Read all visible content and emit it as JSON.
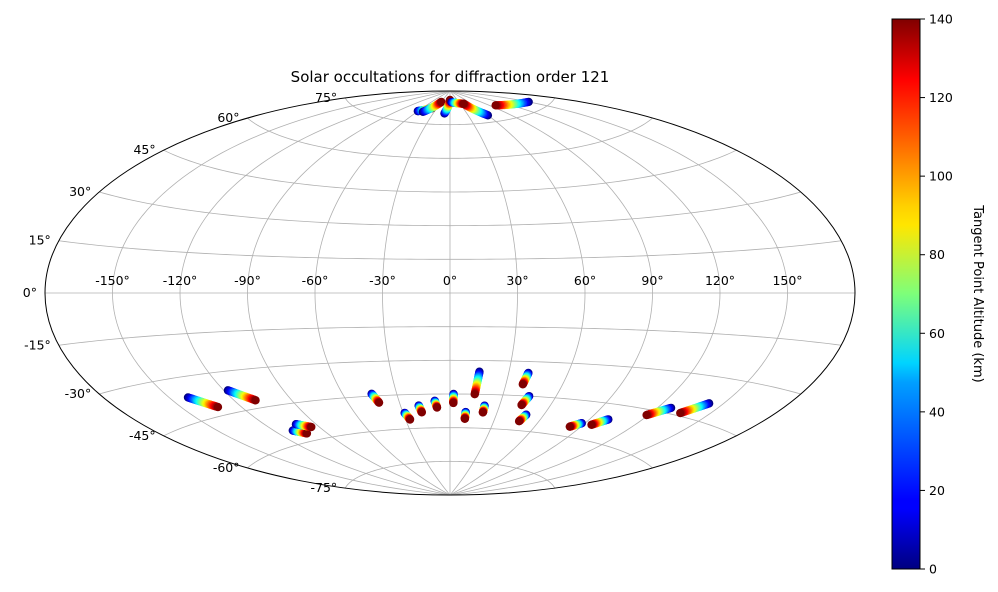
{
  "chart_data": {
    "type": "scatter",
    "projection": "aitoff",
    "title": "Solar occultations for diffraction order 121",
    "lon_ticks": [
      "-150°",
      "-120°",
      "-90°",
      "-60°",
      "-30°",
      "0°",
      "30°",
      "60°",
      "90°",
      "120°",
      "150°"
    ],
    "lon_tick_values": [
      -150,
      -120,
      -90,
      -60,
      -30,
      0,
      30,
      60,
      90,
      120,
      150
    ],
    "lat_ticks": [
      "-75°",
      "-60°",
      "-45°",
      "-30°",
      "-15°",
      "0°",
      "15°",
      "30°",
      "45°",
      "60°",
      "75°"
    ],
    "lat_tick_values": [
      -75,
      -60,
      -45,
      -30,
      -15,
      0,
      15,
      30,
      45,
      60,
      75
    ],
    "grid": true,
    "colorbar": {
      "label": "Tangent Point Altitude (km)",
      "colormap": "jet",
      "range": [
        0,
        140
      ],
      "ticks": [
        "0",
        "20",
        "40",
        "60",
        "80",
        "100",
        "120",
        "140"
      ],
      "tick_values": [
        0,
        20,
        40,
        60,
        80,
        100,
        120,
        140
      ]
    },
    "tracks": [
      {
        "lon_start": -141,
        "lat_start": -37,
        "lon_end": -132,
        "lat_end": -42
      },
      {
        "lon_start": -118,
        "lat_start": -37,
        "lon_end": -109,
        "lat_end": -42
      },
      {
        "lon_start": -109,
        "lat_start": -55,
        "lon_end": -103,
        "lat_end": -57
      },
      {
        "lon_start": -102,
        "lat_start": -53,
        "lon_end": -95,
        "lat_end": -55
      },
      {
        "lon_start": -44,
        "lat_start": -44,
        "lon_end": -42,
        "lat_end": -48
      },
      {
        "lon_start": -29,
        "lat_start": -53,
        "lon_end": -27,
        "lat_end": -56
      },
      {
        "lon_start": -19,
        "lat_start": -50,
        "lon_end": -18,
        "lat_end": -53
      },
      {
        "lon_start": -9,
        "lat_start": -48,
        "lon_end": -8,
        "lat_end": -51
      },
      {
        "lon_start": 2,
        "lat_start": -45,
        "lon_end": 2,
        "lat_end": -49
      },
      {
        "lon_start": 10,
        "lat_start": -53,
        "lon_end": 10,
        "lat_end": -56
      },
      {
        "lon_start": 15,
        "lat_start": -35,
        "lon_end": 14,
        "lat_end": -45
      },
      {
        "lon_start": 21,
        "lat_start": -50,
        "lon_end": 21,
        "lat_end": -53
      },
      {
        "lon_start": 40,
        "lat_start": -35,
        "lon_end": 39,
        "lat_end": -40
      },
      {
        "lon_start": 45,
        "lat_start": -45,
        "lon_end": 43,
        "lat_end": -49
      },
      {
        "lon_start": 49,
        "lat_start": -53,
        "lon_end": 47,
        "lat_end": -56
      },
      {
        "lon_start": 88,
        "lat_start": -54,
        "lon_end": 83,
        "lat_end": -56
      },
      {
        "lon_start": 101,
        "lat_start": -51,
        "lon_end": 95,
        "lat_end": -54
      },
      {
        "lon_start": 127,
        "lat_start": -43,
        "lon_end": 119,
        "lat_end": -47
      },
      {
        "lon_start": 143,
        "lat_start": -39,
        "lon_end": 135,
        "lat_end": -44
      },
      {
        "lon_start": -60,
        "lat_start": 80,
        "lon_end": -40,
        "lat_end": 82
      },
      {
        "lon_start": -50,
        "lat_start": 80,
        "lon_end": -30,
        "lat_end": 85
      },
      {
        "lon_start": -10,
        "lat_start": 80,
        "lon_end": 0,
        "lat_end": 86
      },
      {
        "lon_start": 5,
        "lat_start": 85,
        "lon_end": 40,
        "lat_end": 84
      },
      {
        "lon_start": 60,
        "lat_start": 78,
        "lon_end": 40,
        "lat_end": 84
      },
      {
        "lon_start": 150,
        "lat_start": 78,
        "lon_end": 100,
        "lat_end": 81
      }
    ],
    "track_altitude_range": [
      0,
      140
    ]
  }
}
